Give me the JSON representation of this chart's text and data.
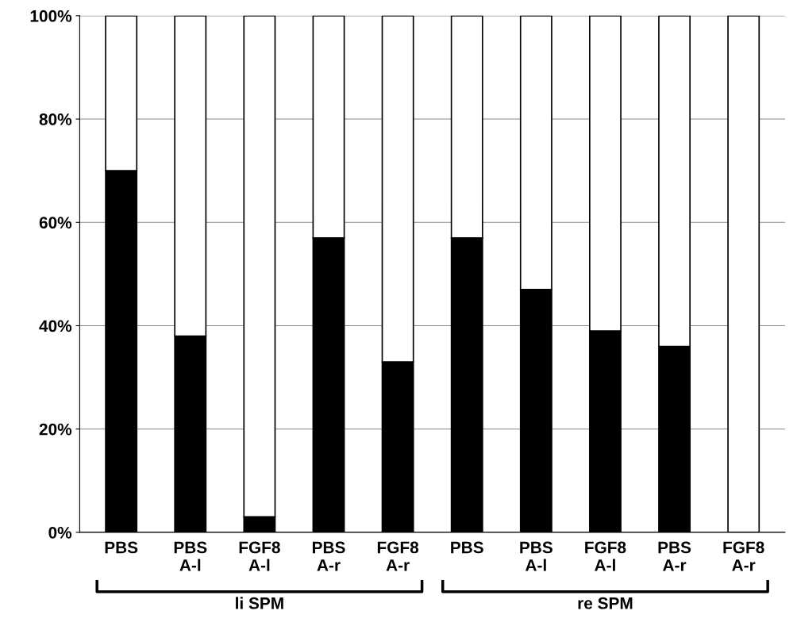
{
  "chart_data": {
    "type": "bar",
    "stacked": true,
    "categories": [
      "PBS",
      "PBS\nA-l",
      "FGF8\nA-l",
      "PBS\nA-r",
      "FGF8\nA-r",
      "PBS",
      "PBS\nA-l",
      "FGF8\nA-l",
      "PBS\nA-r",
      "FGF8\nA-r"
    ],
    "series": [
      {
        "color": "#000000",
        "values": [
          70,
          38,
          3,
          57,
          33,
          57,
          47,
          39,
          36,
          0
        ]
      },
      {
        "color": "#ffffff",
        "values": [
          30,
          62,
          97,
          43,
          67,
          43,
          53,
          61,
          64,
          100
        ]
      }
    ],
    "ylim": [
      0,
      100
    ],
    "yticks": [
      {
        "value": 0,
        "label": "0%"
      },
      {
        "value": 20,
        "label": "20%"
      },
      {
        "value": 40,
        "label": "40%"
      },
      {
        "value": 60,
        "label": "60%"
      },
      {
        "value": 80,
        "label": "80%"
      },
      {
        "value": 100,
        "label": "100%"
      }
    ],
    "grid": "y",
    "legend": false,
    "annotations": [
      "li SPM",
      "re SPM"
    ]
  }
}
